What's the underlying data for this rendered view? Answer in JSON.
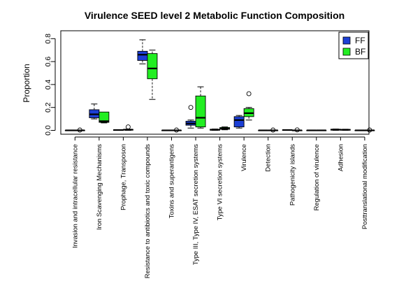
{
  "chart_data": {
    "type": "boxplot",
    "title": "Virulence SEED level 2  Metabolic Function Composition",
    "xlabel": "",
    "ylabel": "Proportion",
    "ylim": [
      0,
      0.85
    ],
    "yticks": [
      "0.0",
      "0.2",
      "0.4",
      "0.6",
      "0.8"
    ],
    "legend_position": "top-right",
    "grid": false,
    "categories": [
      "Invasion and intracellular resistance",
      "Iron Scavenging Mechanisms",
      "Prophage, Transposon",
      "Resistance to antibiotics and toxic compounds",
      "Toxins and superantigens",
      "Type III, Type IV, ESAT secretion systems",
      "Type VI secretion systems",
      "Virulence",
      "Detection",
      "Pathogenicity islands",
      "Regulation of virulence",
      "Adhesion",
      "Posttranslational modification"
    ],
    "series": [
      {
        "name": "FF",
        "color": "#1c3fd6",
        "boxes": [
          {
            "min": 0.0,
            "q1": 0.0,
            "median": 0.0,
            "q3": 0.0,
            "max": 0.0,
            "outliers": []
          },
          {
            "min": 0.1,
            "q1": 0.11,
            "median": 0.14,
            "q3": 0.18,
            "max": 0.23,
            "outliers": []
          },
          {
            "min": 0.0,
            "q1": 0.0,
            "median": 0.003,
            "q3": 0.005,
            "max": 0.006,
            "outliers": []
          },
          {
            "min": 0.58,
            "q1": 0.61,
            "median": 0.66,
            "q3": 0.69,
            "max": 0.79,
            "outliers": []
          },
          {
            "min": 0.0,
            "q1": 0.0,
            "median": 0.0,
            "q3": 0.0,
            "max": 0.0,
            "outliers": []
          },
          {
            "min": 0.02,
            "q1": 0.045,
            "median": 0.06,
            "q3": 0.08,
            "max": 0.09,
            "outliers": [
              0.2
            ]
          },
          {
            "min": 0.0,
            "q1": 0.002,
            "median": 0.005,
            "q3": 0.01,
            "max": 0.012,
            "outliers": []
          },
          {
            "min": 0.02,
            "q1": 0.03,
            "median": 0.09,
            "q3": 0.12,
            "max": 0.13,
            "outliers": []
          },
          {
            "min": 0.0,
            "q1": 0.0,
            "median": 0.0,
            "q3": 0.0,
            "max": 0.0,
            "outliers": []
          },
          {
            "min": 0.0,
            "q1": 0.0,
            "median": 0.003,
            "q3": 0.005,
            "max": 0.006,
            "outliers": []
          },
          {
            "min": 0.0,
            "q1": 0.0,
            "median": 0.0,
            "q3": 0.0,
            "max": 0.0,
            "outliers": []
          },
          {
            "min": 0.0,
            "q1": 0.002,
            "median": 0.006,
            "q3": 0.01,
            "max": 0.012,
            "outliers": []
          },
          {
            "min": 0.0,
            "q1": 0.0,
            "median": 0.0,
            "q3": 0.0,
            "max": 0.0,
            "outliers": []
          }
        ]
      },
      {
        "name": "BF",
        "color": "#22ee22",
        "boxes": [
          {
            "min": 0.0,
            "q1": 0.0,
            "median": 0.0,
            "q3": 0.0,
            "max": 0.0,
            "outliers": [
              0.003
            ]
          },
          {
            "min": 0.065,
            "q1": 0.07,
            "median": 0.08,
            "q3": 0.16,
            "max": 0.16,
            "outliers": []
          },
          {
            "min": 0.0,
            "q1": 0.002,
            "median": 0.006,
            "q3": 0.008,
            "max": 0.01,
            "outliers": [
              0.03
            ]
          },
          {
            "min": 0.27,
            "q1": 0.45,
            "median": 0.54,
            "q3": 0.67,
            "max": 0.7,
            "outliers": []
          },
          {
            "min": 0.0,
            "q1": 0.0,
            "median": 0.0,
            "q3": 0.0,
            "max": 0.0,
            "outliers": [
              0.003
            ]
          },
          {
            "min": 0.02,
            "q1": 0.03,
            "median": 0.11,
            "q3": 0.3,
            "max": 0.38,
            "outliers": []
          },
          {
            "min": 0.005,
            "q1": 0.01,
            "median": 0.015,
            "q3": 0.025,
            "max": 0.03,
            "outliers": []
          },
          {
            "min": 0.09,
            "q1": 0.12,
            "median": 0.15,
            "q3": 0.19,
            "max": 0.2,
            "outliers": [
              0.32
            ]
          },
          {
            "min": 0.0,
            "q1": 0.0,
            "median": 0.0,
            "q3": 0.0,
            "max": 0.0,
            "outliers": [
              0.003
            ]
          },
          {
            "min": 0.0,
            "q1": 0.0,
            "median": 0.0,
            "q3": 0.0,
            "max": 0.0,
            "outliers": [
              0.004
            ]
          },
          {
            "min": 0.0,
            "q1": 0.0,
            "median": 0.0,
            "q3": 0.0,
            "max": 0.0,
            "outliers": []
          },
          {
            "min": 0.0,
            "q1": 0.002,
            "median": 0.005,
            "q3": 0.008,
            "max": 0.01,
            "outliers": []
          },
          {
            "min": 0.0,
            "q1": 0.0,
            "median": 0.0,
            "q3": 0.0,
            "max": 0.0,
            "outliers": [
              0.003
            ]
          }
        ]
      }
    ]
  }
}
